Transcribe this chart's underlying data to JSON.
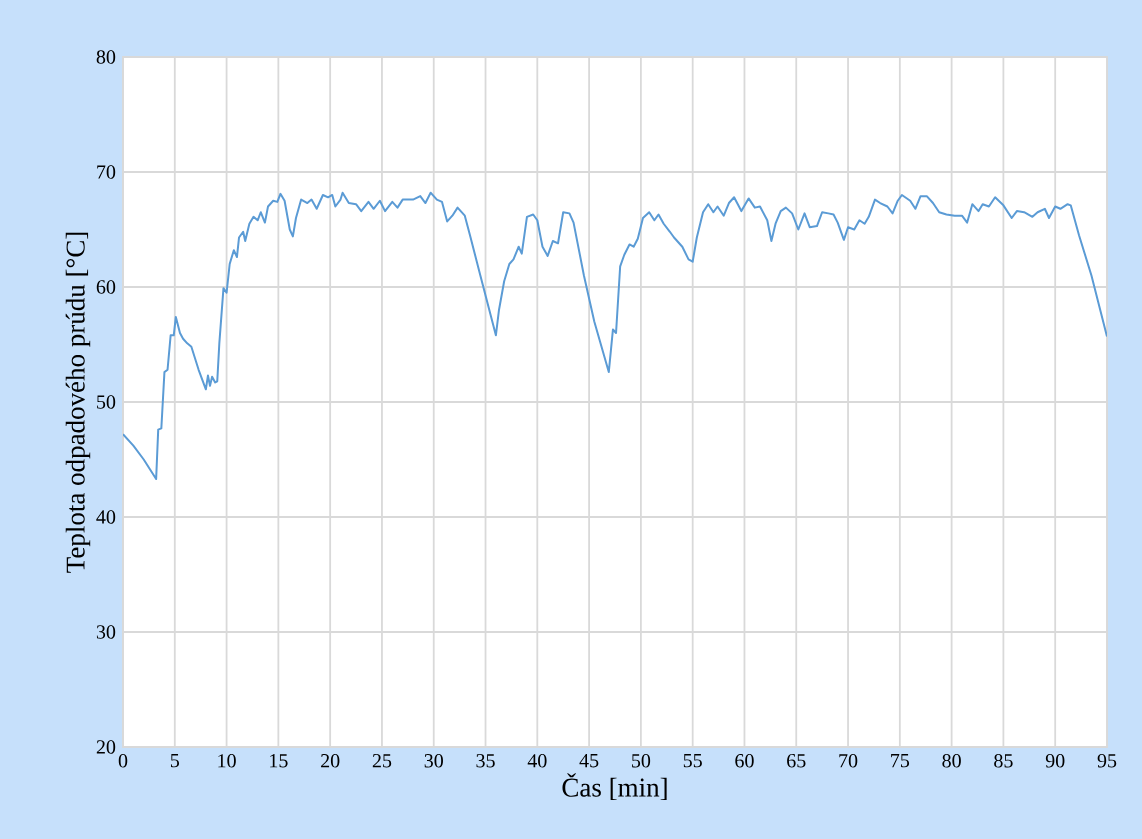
{
  "chart_data": {
    "type": "line",
    "xlabel": "Čas [min]",
    "ylabel": "Teplota odpadového prúdu [°C]",
    "color": "#5b9bd5",
    "grid": true,
    "xlim": [
      0,
      95
    ],
    "ylim": [
      20,
      80
    ],
    "xticks": [
      0,
      5,
      10,
      15,
      20,
      25,
      30,
      35,
      40,
      45,
      50,
      55,
      60,
      65,
      70,
      75,
      80,
      85,
      90,
      95
    ],
    "yticks": [
      20,
      30,
      40,
      50,
      60,
      70,
      80
    ],
    "x": [
      0,
      1,
      2,
      3.2,
      3.4,
      3.7,
      4.0,
      4.3,
      4.6,
      4.9,
      5.1,
      5.5,
      5.8,
      6.2,
      6.6,
      7.3,
      8.0,
      8.2,
      8.4,
      8.6,
      8.9,
      9.1,
      9.3,
      9.7,
      10.0,
      10.3,
      10.7,
      11.0,
      11.2,
      11.6,
      11.8,
      12.2,
      12.6,
      13.0,
      13.3,
      13.7,
      14.0,
      14.5,
      14.9,
      15.2,
      15.6,
      16.1,
      16.4,
      16.7,
      17.2,
      17.8,
      18.2,
      18.7,
      19.3,
      19.8,
      20.2,
      20.5,
      21.0,
      21.2,
      21.8,
      22.5,
      23.0,
      23.7,
      24.2,
      24.8,
      25.3,
      26,
      26.5,
      27,
      28,
      28.7,
      29.2,
      29.7,
      30.3,
      30.8,
      31.3,
      31.8,
      32.3,
      33.0,
      33.5,
      34.5,
      36.0,
      36.3,
      36.8,
      37.3,
      37.7,
      38.2,
      38.5,
      39.0,
      39.6,
      40.0,
      40.5,
      41.0,
      41.5,
      42.0,
      42.5,
      43.1,
      43.5,
      44.5,
      45.5,
      46.9,
      47.3,
      47.6,
      48.0,
      48.4,
      48.9,
      49.3,
      49.7,
      50.2,
      50.8,
      51.3,
      51.7,
      52.2,
      52.8,
      53.2,
      54.0,
      54.6,
      55.0,
      55.4,
      56.0,
      56.5,
      57.0,
      57.4,
      58.0,
      58.5,
      59.0,
      59.7,
      60.4,
      61.0,
      61.5,
      62.2,
      62.6,
      63.0,
      63.5,
      64.0,
      64.6,
      65.2,
      65.8,
      66.3,
      67.0,
      67.5,
      68.1,
      68.6,
      69.0,
      69.6,
      70.0,
      70.6,
      71.1,
      71.6,
      72.0,
      72.6,
      73.1,
      73.8,
      74.3,
      74.8,
      75.2,
      76.0,
      76.5,
      77.0,
      77.6,
      78.2,
      78.8,
      79.5,
      80.3,
      81.0,
      81.5,
      82.0,
      82.6,
      83.0,
      83.6,
      84.2,
      85.0,
      85.8,
      86.3,
      87.0,
      87.8,
      88.3,
      89.0,
      89.4,
      90.0,
      90.5,
      91.2,
      91.5,
      92.3,
      93.5,
      95.0
    ],
    "values": [
      47.2,
      46.2,
      45.0,
      43.3,
      47.6,
      47.7,
      52.6,
      52.8,
      55.8,
      55.8,
      57.4,
      56.0,
      55.5,
      55.1,
      54.8,
      52.8,
      51.1,
      52.3,
      51.4,
      52.2,
      51.7,
      51.8,
      55.1,
      59.9,
      59.5,
      62.0,
      63.2,
      62.6,
      64.3,
      64.8,
      64.0,
      65.5,
      66.1,
      65.8,
      66.5,
      65.6,
      67.0,
      67.5,
      67.4,
      68.1,
      67.5,
      65.0,
      64.4,
      66.0,
      67.6,
      67.3,
      67.6,
      66.8,
      68.0,
      67.8,
      68.0,
      67.0,
      67.6,
      68.2,
      67.3,
      67.2,
      66.6,
      67.4,
      66.8,
      67.5,
      66.6,
      67.4,
      66.9,
      67.6,
      67.6,
      67.9,
      67.3,
      68.2,
      67.6,
      67.4,
      65.7,
      66.2,
      66.9,
      66.2,
      64.5,
      61.0,
      55.8,
      58.0,
      60.5,
      62.0,
      62.4,
      63.5,
      62.9,
      66.1,
      66.3,
      65.8,
      63.5,
      62.7,
      64.0,
      63.8,
      66.5,
      66.4,
      65.6,
      61.0,
      57.0,
      52.6,
      56.3,
      56.0,
      61.8,
      62.8,
      63.7,
      63.5,
      64.2,
      66.0,
      66.5,
      65.8,
      66.3,
      65.5,
      64.8,
      64.3,
      63.5,
      62.4,
      62.2,
      64.3,
      66.5,
      67.2,
      66.5,
      67.0,
      66.2,
      67.3,
      67.8,
      66.6,
      67.7,
      66.9,
      67.0,
      65.8,
      64.0,
      65.5,
      66.6,
      66.9,
      66.4,
      65.0,
      66.4,
      65.2,
      65.3,
      66.5,
      66.4,
      66.3,
      65.6,
      64.1,
      65.2,
      65.0,
      65.8,
      65.5,
      66.1,
      67.6,
      67.3,
      67.0,
      66.4,
      67.5,
      68.0,
      67.5,
      66.8,
      67.9,
      67.9,
      67.3,
      66.5,
      66.3,
      66.2,
      66.2,
      65.6,
      67.2,
      66.6,
      67.2,
      67.0,
      67.8,
      67.1,
      66.0,
      66.6,
      66.5,
      66.1,
      66.5,
      66.8,
      66.0,
      67.0,
      66.8,
      67.2,
      67.1,
      64.5,
      61.0,
      55.7
    ]
  }
}
